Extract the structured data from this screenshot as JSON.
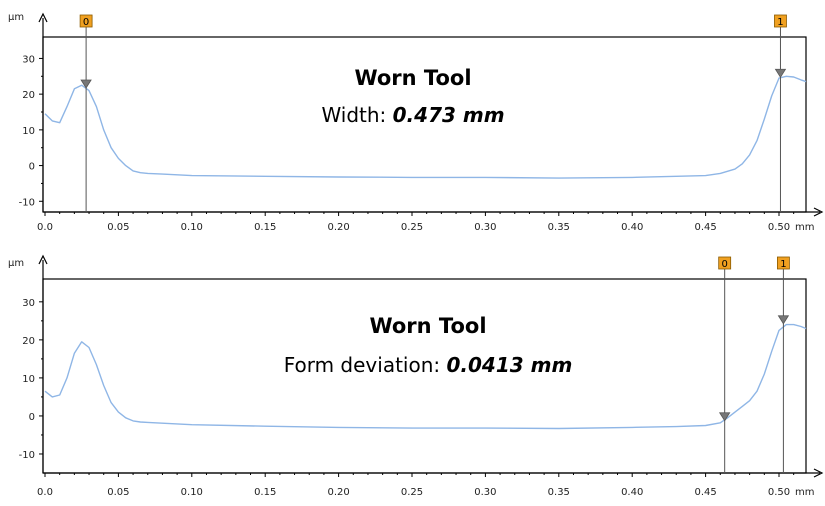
{
  "charts": [
    {
      "title": "Worn Tool",
      "measure_label": "Width: ",
      "measure_value": "0.473 mm",
      "y_unit": "µm",
      "x_unit": "mm"
    },
    {
      "title": "Worn Tool",
      "measure_label": "Form deviation: ",
      "measure_value": "0.0413 mm",
      "y_unit": "µm",
      "x_unit": "mm"
    }
  ],
  "chart_data": [
    {
      "type": "line",
      "title": "Worn Tool",
      "annotation": "Width: 0.473 mm",
      "ylabel": "µm",
      "xlabel": "mm",
      "xlim": [
        0.0,
        0.52
      ],
      "ylim": [
        -13,
        36
      ],
      "x_ticks": [
        "0.0",
        "0.05",
        "0.10",
        "0.15",
        "0.20",
        "0.25",
        "0.30",
        "0.35",
        "0.40",
        "0.45",
        "0.50"
      ],
      "x_tick_values": [
        0.0,
        0.05,
        0.1,
        0.15,
        0.2,
        0.25,
        0.3,
        0.35,
        0.4,
        0.45,
        0.5
      ],
      "y_ticks": [
        "-10",
        "0",
        "10",
        "20",
        "30"
      ],
      "y_tick_values": [
        -10,
        0,
        10,
        20,
        30
      ],
      "grid": false,
      "line_color": "#8fb6e6",
      "cursor_color": "#f0a020",
      "series": [
        {
          "x": [
            0.0,
            0.005,
            0.01,
            0.015,
            0.02,
            0.025,
            0.03,
            0.035,
            0.04,
            0.045,
            0.05,
            0.055,
            0.06,
            0.065,
            0.07,
            0.08,
            0.1,
            0.15,
            0.2,
            0.25,
            0.3,
            0.35,
            0.4,
            0.43,
            0.45,
            0.46,
            0.47,
            0.475,
            0.48,
            0.485,
            0.49,
            0.495,
            0.5,
            0.505,
            0.51,
            0.515,
            0.52
          ],
          "y": [
            14.5,
            12.5,
            12.0,
            16.5,
            21.5,
            22.5,
            21.0,
            16.5,
            10.0,
            5.0,
            2.0,
            0.0,
            -1.5,
            -2.0,
            -2.2,
            -2.4,
            -2.8,
            -3.0,
            -3.2,
            -3.3,
            -3.3,
            -3.5,
            -3.3,
            -3.0,
            -2.8,
            -2.2,
            -1.0,
            0.5,
            3.0,
            7.0,
            13.0,
            19.5,
            24.5,
            25.0,
            24.8,
            24.0,
            23.5
          ]
        }
      ],
      "cursors": [
        {
          "label": "0",
          "x": 0.028,
          "y": 22.0
        },
        {
          "label": "1",
          "x": 0.501,
          "y": 25.0
        }
      ]
    },
    {
      "type": "line",
      "title": "Worn Tool",
      "annotation": "Form deviation: 0.0413 mm",
      "ylabel": "µm",
      "xlabel": "mm",
      "xlim": [
        0.0,
        0.52
      ],
      "ylim": [
        -15,
        36
      ],
      "x_ticks": [
        "0.0",
        "0.05",
        "0.10",
        "0.15",
        "0.20",
        "0.25",
        "0.30",
        "0.35",
        "0.40",
        "0.45",
        "0.50"
      ],
      "x_tick_values": [
        0.0,
        0.05,
        0.1,
        0.15,
        0.2,
        0.25,
        0.3,
        0.35,
        0.4,
        0.45,
        0.5
      ],
      "y_ticks": [
        "-10",
        "0",
        "10",
        "20",
        "30"
      ],
      "y_tick_values": [
        -10,
        0,
        10,
        20,
        30
      ],
      "grid": false,
      "line_color": "#8fb6e6",
      "cursor_color": "#f0a020",
      "series": [
        {
          "x": [
            0.0,
            0.005,
            0.01,
            0.015,
            0.02,
            0.025,
            0.03,
            0.035,
            0.04,
            0.045,
            0.05,
            0.055,
            0.06,
            0.065,
            0.07,
            0.08,
            0.1,
            0.15,
            0.2,
            0.25,
            0.3,
            0.35,
            0.4,
            0.43,
            0.45,
            0.46,
            0.465,
            0.47,
            0.475,
            0.48,
            0.485,
            0.49,
            0.495,
            0.5,
            0.505,
            0.51,
            0.515,
            0.52
          ],
          "y": [
            6.5,
            5.0,
            5.5,
            10.0,
            16.5,
            19.5,
            18.0,
            13.5,
            8.0,
            3.5,
            1.0,
            -0.5,
            -1.3,
            -1.6,
            -1.7,
            -1.9,
            -2.3,
            -2.7,
            -3.0,
            -3.2,
            -3.2,
            -3.3,
            -3.0,
            -2.8,
            -2.5,
            -1.8,
            -0.5,
            1.0,
            2.5,
            4.0,
            6.5,
            11.0,
            17.0,
            22.5,
            24.0,
            24.0,
            23.5,
            23.0
          ]
        }
      ],
      "cursors": [
        {
          "label": "0",
          "x": 0.463,
          "y": -1.0
        },
        {
          "label": "1",
          "x": 0.503,
          "y": 24.5
        }
      ]
    }
  ]
}
